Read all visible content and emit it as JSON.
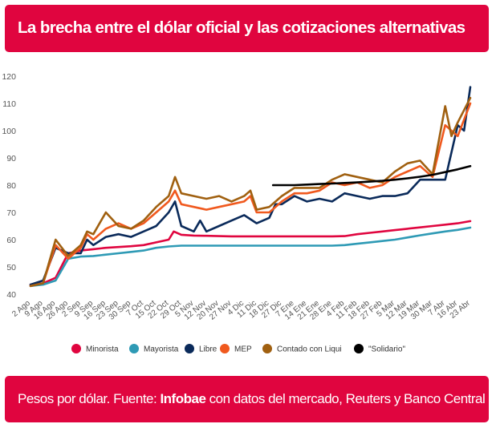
{
  "header": {
    "title": "La brecha entre el dólar oficial y las cotizaciones alternativas"
  },
  "footer": {
    "prefix": "Pesos por dólar. Fuente: ",
    "source_bold": "Infobae",
    "suffix": " con datos del mercado, Reuters y Banco Central"
  },
  "colors": {
    "banner": "#e0053f"
  },
  "chart_data": {
    "type": "line",
    "title": "La brecha entre el dólar oficial y las cotizaciones alternativas",
    "xlabel": "",
    "ylabel": "",
    "ylim": [
      40,
      120
    ],
    "yticks": [
      40,
      50,
      60,
      70,
      80,
      90,
      100,
      110,
      120
    ],
    "grid": false,
    "legend_position": "bottom",
    "x_tick_labels": [
      "2 Ago",
      "9 Ago",
      "16 Ago",
      "26 Ago",
      "2 Sep",
      "9 Sep",
      "16 Sep",
      "23 Sep",
      "30 Sep",
      "7 Oct",
      "15 Oct",
      "22 Oct",
      "29 Oct",
      "5 Nov",
      "12 Nov",
      "20 Nov",
      "27 Nov",
      "4 Dic",
      "11 Dic",
      "18 Dic",
      "27 Dic",
      "7 Ene",
      "14 Ene",
      "21 Ene",
      "28 Ene",
      "4 Feb",
      "11 Feb",
      "18 Feb",
      "27 Feb",
      "5 Mar",
      "12 Mar",
      "19 Mar",
      "30 Mar",
      "7 Abr",
      "16 Abr",
      "23 Abr"
    ],
    "series": [
      {
        "name": "Minorista",
        "color": "#e0053f",
        "values": [
          [
            0,
            43.5
          ],
          [
            1,
            44
          ],
          [
            2,
            46
          ],
          [
            3,
            55
          ],
          [
            4,
            56
          ],
          [
            5,
            56.5
          ],
          [
            6,
            57
          ],
          [
            7,
            57.3
          ],
          [
            8,
            57.6
          ],
          [
            9,
            58
          ],
          [
            10,
            59
          ],
          [
            11,
            60
          ],
          [
            11.4,
            63
          ],
          [
            12,
            61.8
          ],
          [
            13,
            61.5
          ],
          [
            14,
            61.4
          ],
          [
            15,
            61.3
          ],
          [
            16,
            61.2
          ],
          [
            17,
            61.2
          ],
          [
            18,
            61.2
          ],
          [
            19,
            61.2
          ],
          [
            20,
            61.2
          ],
          [
            21,
            61.2
          ],
          [
            22,
            61.2
          ],
          [
            23,
            61.2
          ],
          [
            24,
            61.2
          ],
          [
            25,
            61.3
          ],
          [
            26,
            62
          ],
          [
            27,
            62.5
          ],
          [
            28,
            63
          ],
          [
            29,
            63.5
          ],
          [
            30,
            64
          ],
          [
            31,
            64.5
          ],
          [
            32,
            65
          ],
          [
            33,
            65.5
          ],
          [
            34,
            66
          ],
          [
            35,
            66.8
          ]
        ]
      },
      {
        "name": "Mayorista",
        "color": "#2e9ab5",
        "values": [
          [
            0,
            43
          ],
          [
            1,
            43.5
          ],
          [
            2,
            45
          ],
          [
            3,
            53
          ],
          [
            4,
            53.8
          ],
          [
            5,
            54
          ],
          [
            6,
            54.5
          ],
          [
            7,
            55
          ],
          [
            8,
            55.5
          ],
          [
            9,
            56
          ],
          [
            10,
            57
          ],
          [
            11,
            57.5
          ],
          [
            12,
            57.8
          ],
          [
            13,
            57.8
          ],
          [
            14,
            57.8
          ],
          [
            15,
            57.8
          ],
          [
            16,
            57.8
          ],
          [
            17,
            57.8
          ],
          [
            18,
            57.8
          ],
          [
            19,
            57.8
          ],
          [
            20,
            57.8
          ],
          [
            21,
            57.8
          ],
          [
            22,
            57.8
          ],
          [
            23,
            57.8
          ],
          [
            24,
            57.8
          ],
          [
            25,
            58
          ],
          [
            26,
            58.5
          ],
          [
            27,
            59
          ],
          [
            28,
            59.5
          ],
          [
            29,
            60
          ],
          [
            30,
            60.8
          ],
          [
            31,
            61.6
          ],
          [
            32,
            62.3
          ],
          [
            33,
            63
          ],
          [
            34,
            63.6
          ],
          [
            35,
            64.4
          ]
        ]
      },
      {
        "name": "Libre",
        "color": "#0a2a5a",
        "values": [
          [
            0,
            43.5
          ],
          [
            1,
            45
          ],
          [
            2,
            57
          ],
          [
            3,
            55
          ],
          [
            4,
            55
          ],
          [
            4.5,
            60
          ],
          [
            5,
            58
          ],
          [
            6,
            61
          ],
          [
            7,
            62
          ],
          [
            8,
            61
          ],
          [
            9,
            63
          ],
          [
            10,
            65
          ],
          [
            11,
            70
          ],
          [
            11.5,
            74
          ],
          [
            12,
            65
          ],
          [
            13,
            63
          ],
          [
            13.5,
            67
          ],
          [
            14,
            63
          ],
          [
            15,
            65
          ],
          [
            16,
            67
          ],
          [
            17,
            69
          ],
          [
            18,
            66
          ],
          [
            19,
            68
          ],
          [
            19.5,
            73
          ],
          [
            20,
            73
          ],
          [
            21,
            76
          ],
          [
            22,
            74
          ],
          [
            23,
            75
          ],
          [
            24,
            74
          ],
          [
            25,
            77
          ],
          [
            26,
            76
          ],
          [
            27,
            75
          ],
          [
            28,
            76
          ],
          [
            29,
            76
          ],
          [
            30,
            77
          ],
          [
            31,
            82
          ],
          [
            32,
            82
          ],
          [
            33,
            82
          ],
          [
            34,
            102
          ],
          [
            34.5,
            100
          ],
          [
            35,
            116
          ]
        ]
      },
      {
        "name": "MEP",
        "color": "#f0591e",
        "values": [
          [
            0,
            43
          ],
          [
            1,
            44
          ],
          [
            2,
            58
          ],
          [
            3,
            53
          ],
          [
            4,
            57
          ],
          [
            4.5,
            62
          ],
          [
            5,
            60
          ],
          [
            6,
            64
          ],
          [
            7,
            66
          ],
          [
            8,
            64
          ],
          [
            9,
            66
          ],
          [
            10,
            70
          ],
          [
            11,
            74
          ],
          [
            11.5,
            78
          ],
          [
            12,
            73
          ],
          [
            13,
            72
          ],
          [
            14,
            71
          ],
          [
            15,
            72
          ],
          [
            16,
            73
          ],
          [
            17,
            74
          ],
          [
            17.5,
            76
          ],
          [
            18,
            70
          ],
          [
            19,
            70
          ],
          [
            20,
            74
          ],
          [
            21,
            77
          ],
          [
            22,
            77
          ],
          [
            23,
            78
          ],
          [
            24,
            81
          ],
          [
            25,
            80
          ],
          [
            26,
            81
          ],
          [
            27,
            79
          ],
          [
            28,
            80
          ],
          [
            29,
            83
          ],
          [
            30,
            85
          ],
          [
            31,
            87
          ],
          [
            32,
            83
          ],
          [
            33,
            102
          ],
          [
            34,
            98
          ],
          [
            35,
            110
          ]
        ]
      },
      {
        "name": "Contado con Liqui",
        "color": "#a06010",
        "values": [
          [
            0,
            43
          ],
          [
            1,
            44
          ],
          [
            2,
            60
          ],
          [
            3,
            54
          ],
          [
            4,
            58
          ],
          [
            4.5,
            63
          ],
          [
            5,
            62
          ],
          [
            6,
            70
          ],
          [
            7,
            65
          ],
          [
            8,
            64
          ],
          [
            9,
            67
          ],
          [
            10,
            72
          ],
          [
            11,
            76
          ],
          [
            11.5,
            83
          ],
          [
            12,
            77
          ],
          [
            13,
            76
          ],
          [
            14,
            75
          ],
          [
            15,
            76
          ],
          [
            16,
            74
          ],
          [
            17,
            76
          ],
          [
            17.5,
            78
          ],
          [
            18,
            71
          ],
          [
            19,
            72
          ],
          [
            20,
            76
          ],
          [
            21,
            79
          ],
          [
            22,
            79
          ],
          [
            23,
            79
          ],
          [
            24,
            82
          ],
          [
            25,
            84
          ],
          [
            26,
            83
          ],
          [
            27,
            82
          ],
          [
            28,
            81
          ],
          [
            29,
            85
          ],
          [
            30,
            88
          ],
          [
            31,
            89
          ],
          [
            32,
            84
          ],
          [
            33,
            109
          ],
          [
            33.5,
            98
          ],
          [
            34,
            103
          ],
          [
            35,
            112
          ]
        ]
      },
      {
        "name": "\"Solidario\"",
        "color": "#000000",
        "values": [
          [
            19.3,
            80
          ],
          [
            20,
            80
          ],
          [
            21,
            80
          ],
          [
            22,
            80.2
          ],
          [
            23,
            80.4
          ],
          [
            24,
            80.6
          ],
          [
            25,
            80.8
          ],
          [
            26,
            81
          ],
          [
            27,
            81.3
          ],
          [
            28,
            81.6
          ],
          [
            29,
            82
          ],
          [
            30,
            82.5
          ],
          [
            31,
            83.1
          ],
          [
            32,
            83.8
          ],
          [
            33,
            84.8
          ],
          [
            34,
            85.8
          ],
          [
            35,
            87
          ]
        ]
      }
    ]
  }
}
